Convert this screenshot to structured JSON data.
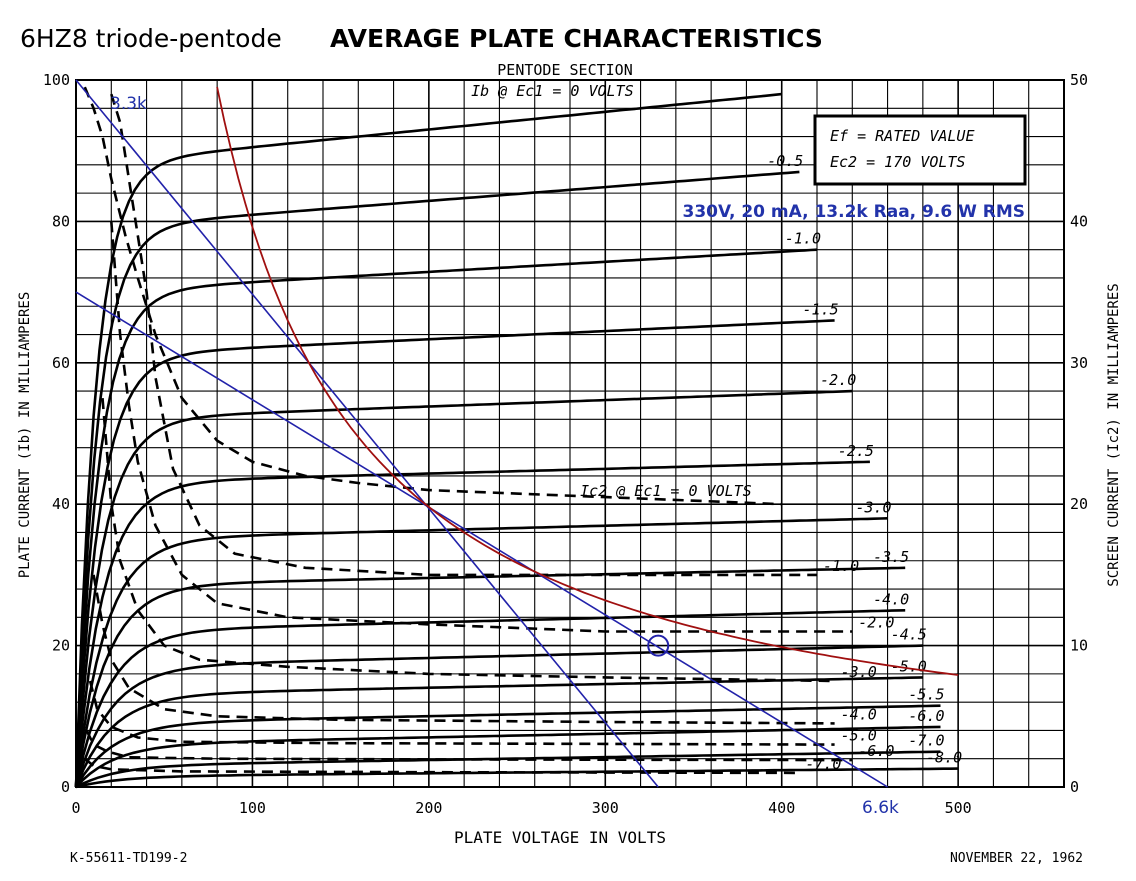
{
  "chart_data": {
    "type": "line",
    "title_plain": "6HZ8 triode-pentode",
    "title_bold": "AVERAGE PLATE CHARACTERISTICS",
    "section_label": "PENTODE SECTION",
    "xlabel": "PLATE VOLTAGE IN VOLTS",
    "ylabel_left": "PLATE CURRENT (Ib) IN MILLIAMPERES",
    "ylabel_right": "SCREEN CURRENT (Ic2) IN MILLIAMPERES",
    "xlim": [
      0,
      560
    ],
    "ylim": [
      0,
      100
    ],
    "y2lim": [
      0,
      50
    ],
    "x_ticks": [
      0,
      100,
      200,
      300,
      400,
      500
    ],
    "x_tick_labels": [
      "0",
      "100",
      "200",
      "300",
      "400",
      "500"
    ],
    "y_ticks": [
      0,
      20,
      40,
      60,
      80,
      100
    ],
    "y_tick_labels": [
      "0",
      "20",
      "40",
      "60",
      "80",
      "100"
    ],
    "y2_ticks": [
      0,
      10,
      20,
      30,
      40,
      50
    ],
    "y2_tick_labels": [
      "0",
      "10",
      "20",
      "30",
      "40",
      "50"
    ],
    "grid": true,
    "conditions": [
      "Ef = RATED VALUE",
      "Ec2 = 170 VOLTS"
    ],
    "annotation_operating_point": "330V, 20 mA, 13.2k Raa, 9.6 W RMS",
    "annotation_3k3": "3.3k",
    "annotation_6k6": "6.6k",
    "footer_left": "K-55611-TD199-2",
    "footer_right": "NOVEMBER 22, 1962",
    "plate_curves": [
      {
        "label": "Ib @ Ec1 = 0 VOLTS",
        "ec1": 0.0,
        "end_x": 400,
        "sat": 88,
        "v_end": 98,
        "k": 0.09
      },
      {
        "label": "-0.5",
        "ec1": -0.5,
        "end_x": 410,
        "sat": 79,
        "v_end": 87,
        "k": 0.085
      },
      {
        "label": "-1.0",
        "ec1": -1.0,
        "end_x": 420,
        "sat": 70,
        "v_end": 76,
        "k": 0.08
      },
      {
        "label": "-1.5",
        "ec1": -1.5,
        "end_x": 430,
        "sat": 61,
        "v_end": 66,
        "k": 0.075
      },
      {
        "label": "-2.0",
        "ec1": -2.0,
        "end_x": 440,
        "sat": 52,
        "v_end": 56,
        "k": 0.07
      },
      {
        "label": "-2.5",
        "ec1": -2.5,
        "end_x": 450,
        "sat": 43,
        "v_end": 46,
        "k": 0.065
      },
      {
        "label": "-3.0",
        "ec1": -3.0,
        "end_x": 460,
        "sat": 35,
        "v_end": 38,
        "k": 0.06
      },
      {
        "label": "-3.5",
        "ec1": -3.5,
        "end_x": 470,
        "sat": 28.5,
        "v_end": 31,
        "k": 0.058
      },
      {
        "label": "-4.0",
        "ec1": -4.0,
        "end_x": 470,
        "sat": 22,
        "v_end": 25,
        "k": 0.055
      },
      {
        "label": "-4.5",
        "ec1": -4.5,
        "end_x": 480,
        "sat": 17,
        "v_end": 20,
        "k": 0.052
      },
      {
        "label": "-5.0",
        "ec1": -5.0,
        "end_x": 480,
        "sat": 13,
        "v_end": 15.5,
        "k": 0.05
      },
      {
        "label": "-5.5",
        "ec1": -5.5,
        "end_x": 490,
        "sat": 9,
        "v_end": 11.5,
        "k": 0.048
      },
      {
        "label": "-6.0",
        "ec1": -6.0,
        "end_x": 490,
        "sat": 6,
        "v_end": 8.5,
        "k": 0.046
      },
      {
        "label": "-7.0",
        "ec1": -7.0,
        "end_x": 490,
        "sat": 3,
        "v_end": 5,
        "k": 0.044
      },
      {
        "label": "-8.0",
        "ec1": -8.0,
        "end_x": 500,
        "sat": 1.5,
        "v_end": 2.6,
        "k": 0.04
      }
    ],
    "screen_curves": [
      {
        "label": "Ic2 @ Ec1 = 0 VOLTS",
        "ec1": 0.0,
        "points": [
          [
            5,
            99
          ],
          [
            10,
            96
          ],
          [
            15,
            92
          ],
          [
            20,
            86
          ],
          [
            28,
            78
          ],
          [
            35,
            72
          ],
          [
            45,
            64
          ],
          [
            60,
            55
          ],
          [
            80,
            49
          ],
          [
            100,
            46
          ],
          [
            130,
            44
          ],
          [
            160,
            43
          ],
          [
            200,
            42
          ],
          [
            300,
            41
          ],
          [
            400,
            40
          ]
        ]
      },
      {
        "label": "-1.0",
        "ec1": -1.0,
        "points": [
          [
            20,
            98
          ],
          [
            25,
            94
          ],
          [
            30,
            86
          ],
          [
            35,
            78
          ],
          [
            40,
            70
          ],
          [
            45,
            58
          ],
          [
            55,
            45
          ],
          [
            70,
            37
          ],
          [
            90,
            33
          ],
          [
            130,
            31
          ],
          [
            200,
            30
          ],
          [
            300,
            30
          ],
          [
            420,
            30
          ]
        ]
      },
      {
        "label": "-2.0",
        "ec1": -2.0,
        "points": [
          [
            20,
            80
          ],
          [
            25,
            64
          ],
          [
            30,
            54
          ],
          [
            35,
            46
          ],
          [
            45,
            37
          ],
          [
            60,
            30
          ],
          [
            80,
            26
          ],
          [
            120,
            24
          ],
          [
            200,
            23
          ],
          [
            300,
            22
          ],
          [
            440,
            22
          ]
        ]
      },
      {
        "label": "-3.0",
        "ec1": -3.0,
        "points": [
          [
            15,
            55
          ],
          [
            20,
            40
          ],
          [
            25,
            32
          ],
          [
            35,
            25
          ],
          [
            50,
            20
          ],
          [
            70,
            18
          ],
          [
            120,
            17
          ],
          [
            200,
            16
          ],
          [
            300,
            15.5
          ],
          [
            430,
            15
          ]
        ]
      },
      {
        "label": "-4.0",
        "ec1": -4.0,
        "points": [
          [
            10,
            30
          ],
          [
            15,
            23
          ],
          [
            20,
            18
          ],
          [
            30,
            14
          ],
          [
            50,
            11
          ],
          [
            80,
            10
          ],
          [
            150,
            9.5
          ],
          [
            300,
            9.2
          ],
          [
            430,
            9
          ]
        ]
      },
      {
        "label": "-5.0",
        "ec1": -5.0,
        "points": [
          [
            8,
            15
          ],
          [
            12,
            11
          ],
          [
            20,
            8.5
          ],
          [
            35,
            7
          ],
          [
            60,
            6.4
          ],
          [
            150,
            6.2
          ],
          [
            300,
            6.1
          ],
          [
            430,
            6
          ]
        ]
      },
      {
        "label": "-6.0",
        "ec1": -6.0,
        "points": [
          [
            6,
            8
          ],
          [
            10,
            6
          ],
          [
            18,
            5
          ],
          [
            30,
            4.2
          ],
          [
            80,
            4
          ],
          [
            200,
            3.9
          ],
          [
            440,
            3.8
          ]
        ]
      },
      {
        "label": "-7.0",
        "ec1": -7.0,
        "points": [
          [
            5,
            4
          ],
          [
            10,
            3
          ],
          [
            20,
            2.5
          ],
          [
            60,
            2.2
          ],
          [
            200,
            2.1
          ],
          [
            410,
            2.0
          ]
        ]
      }
    ],
    "load_lines": [
      {
        "name": "3.3k",
        "color": "#2222aa",
        "points": [
          [
            0,
            100
          ],
          [
            330,
            0
          ]
        ]
      },
      {
        "name": "6.6k",
        "color": "#2222aa",
        "points": [
          [
            0,
            70
          ],
          [
            460,
            0
          ]
        ]
      }
    ],
    "dissipation_curve": {
      "color": "#a01010",
      "watts": 7.92,
      "x_from": 80,
      "x_to": 500
    },
    "operating_point": {
      "x": 330,
      "y": 20,
      "color": "#2222aa"
    }
  }
}
